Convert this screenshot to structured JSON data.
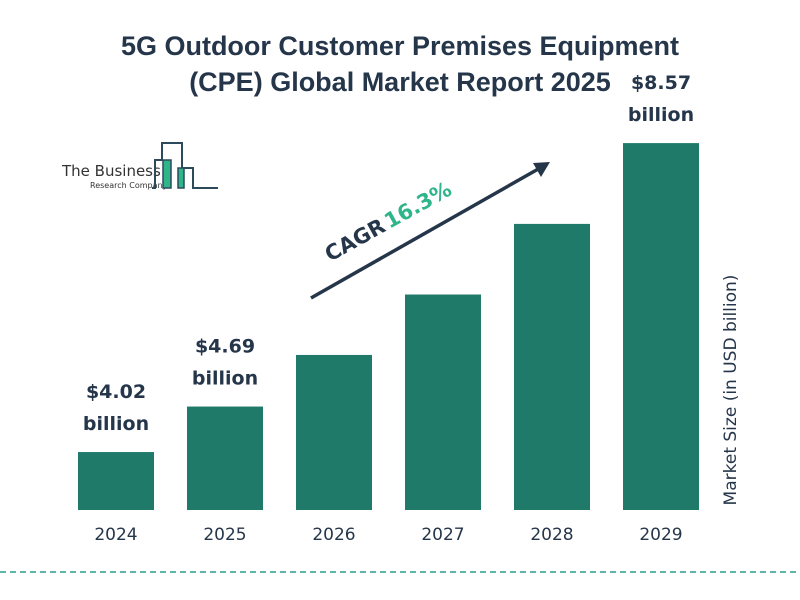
{
  "chart_data": {
    "type": "bar",
    "title": "5G Outdoor Customer Premises Equipment (CPE) Global Market Report 2025",
    "title_lines": [
      "5G Outdoor Customer Premises Equipment",
      "(CPE) Global Market Report 2025"
    ],
    "categories": [
      "2024",
      "2025",
      "2026",
      "2027",
      "2028",
      "2029"
    ],
    "values": [
      4.02,
      4.69,
      5.45,
      6.34,
      7.38,
      8.57
    ],
    "data_labels": [
      {
        "index": 0,
        "value": "$4.02",
        "unit": "billion"
      },
      {
        "index": 1,
        "value": "$4.69",
        "unit": "billion"
      },
      {
        "index": 5,
        "value": "$8.57",
        "unit": "billion"
      }
    ],
    "ylabel": "Market Size (in USD billion)",
    "xlabel": "",
    "grid": false,
    "annotation": {
      "label": "CAGR",
      "value": "16.3%"
    },
    "colors": {
      "bar": "#1f7a6a",
      "text": "#26364a",
      "cagr": "#2fb58a",
      "divider": "#2a9d8f"
    }
  },
  "logo": {
    "line1": "The Business",
    "line2": "Research Company"
  }
}
